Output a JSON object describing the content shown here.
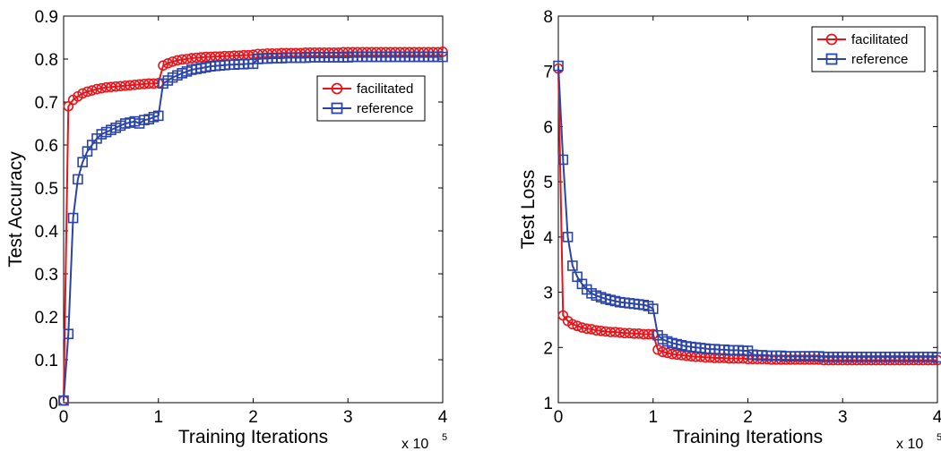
{
  "chart_data": [
    {
      "type": "line",
      "xlabel": "Training Iterations",
      "ylabel": "Test Accuracy",
      "x_multiplier": "x 10",
      "x_multiplier_exp": "5",
      "xlim": [
        0,
        4
      ],
      "ylim": [
        0,
        0.9
      ],
      "xticks": [
        "0",
        "1",
        "2",
        "3",
        "4"
      ],
      "yticks": [
        "0",
        "0.1",
        "0.2",
        "0.3",
        "0.4",
        "0.5",
        "0.6",
        "0.7",
        "0.8",
        "0.9"
      ],
      "grid": false,
      "legend_position": "upper-right",
      "series": [
        {
          "name": "facilitated",
          "color": "#e8141b",
          "marker": "circle",
          "x": [
            0,
            0.05,
            0.1,
            0.15,
            0.2,
            0.25,
            0.3,
            0.35,
            0.4,
            0.45,
            0.5,
            0.55,
            0.6,
            0.65,
            0.7,
            0.75,
            0.8,
            0.85,
            0.9,
            0.95,
            1.0,
            1.05,
            1.1,
            1.15,
            1.2,
            1.25,
            1.3,
            1.35,
            1.4,
            1.45,
            1.5,
            1.55,
            1.6,
            1.65,
            1.7,
            1.75,
            1.8,
            1.85,
            1.9,
            1.95,
            2.0,
            2.05,
            2.1,
            2.15,
            2.2,
            2.25,
            2.3,
            2.35,
            2.4,
            2.45,
            2.5,
            2.55,
            2.6,
            2.65,
            2.7,
            2.75,
            2.8,
            2.85,
            2.9,
            2.95,
            3.0,
            3.05,
            3.1,
            3.15,
            3.2,
            3.25,
            3.3,
            3.35,
            3.4,
            3.45,
            3.5,
            3.55,
            3.6,
            3.65,
            3.7,
            3.75,
            3.8,
            3.85,
            3.9,
            3.95,
            4.0
          ],
          "y": [
            0.005,
            0.69,
            0.705,
            0.713,
            0.72,
            0.724,
            0.727,
            0.73,
            0.732,
            0.734,
            0.735,
            0.736,
            0.737,
            0.738,
            0.739,
            0.74,
            0.741,
            0.742,
            0.743,
            0.743,
            0.744,
            0.785,
            0.79,
            0.794,
            0.797,
            0.799,
            0.8,
            0.802,
            0.803,
            0.804,
            0.805,
            0.805,
            0.806,
            0.806,
            0.807,
            0.807,
            0.808,
            0.808,
            0.809,
            0.809,
            0.81,
            0.812,
            0.812,
            0.813,
            0.813,
            0.813,
            0.814,
            0.814,
            0.814,
            0.814,
            0.814,
            0.815,
            0.815,
            0.815,
            0.815,
            0.815,
            0.815,
            0.815,
            0.815,
            0.816,
            0.816,
            0.816,
            0.816,
            0.816,
            0.816,
            0.816,
            0.816,
            0.816,
            0.816,
            0.816,
            0.816,
            0.816,
            0.816,
            0.816,
            0.816,
            0.816,
            0.816,
            0.816,
            0.816,
            0.816,
            0.817
          ]
        },
        {
          "name": "reference",
          "color": "#2b44a8",
          "marker": "square",
          "x": [
            0,
            0.05,
            0.1,
            0.15,
            0.2,
            0.25,
            0.3,
            0.35,
            0.4,
            0.45,
            0.5,
            0.55,
            0.6,
            0.65,
            0.7,
            0.75,
            0.8,
            0.85,
            0.9,
            0.95,
            1.0,
            1.05,
            1.1,
            1.15,
            1.2,
            1.25,
            1.3,
            1.35,
            1.4,
            1.45,
            1.5,
            1.55,
            1.6,
            1.65,
            1.7,
            1.75,
            1.8,
            1.85,
            1.9,
            1.95,
            2.0,
            2.05,
            2.1,
            2.15,
            2.2,
            2.25,
            2.3,
            2.35,
            2.4,
            2.45,
            2.5,
            2.55,
            2.6,
            2.65,
            2.7,
            2.75,
            2.8,
            2.85,
            2.9,
            2.95,
            3.0,
            3.05,
            3.1,
            3.15,
            3.2,
            3.25,
            3.3,
            3.35,
            3.4,
            3.45,
            3.5,
            3.55,
            3.6,
            3.65,
            3.7,
            3.75,
            3.8,
            3.85,
            3.9,
            3.95,
            4.0
          ],
          "y": [
            0.005,
            0.16,
            0.43,
            0.52,
            0.56,
            0.585,
            0.6,
            0.615,
            0.625,
            0.63,
            0.635,
            0.64,
            0.645,
            0.65,
            0.652,
            0.655,
            0.65,
            0.658,
            0.66,
            0.665,
            0.668,
            0.743,
            0.75,
            0.757,
            0.762,
            0.767,
            0.771,
            0.775,
            0.777,
            0.779,
            0.781,
            0.783,
            0.784,
            0.785,
            0.786,
            0.787,
            0.787,
            0.788,
            0.788,
            0.789,
            0.789,
            0.8,
            0.801,
            0.801,
            0.802,
            0.802,
            0.802,
            0.803,
            0.803,
            0.803,
            0.803,
            0.803,
            0.804,
            0.804,
            0.804,
            0.804,
            0.804,
            0.804,
            0.804,
            0.804,
            0.804,
            0.805,
            0.805,
            0.805,
            0.805,
            0.805,
            0.805,
            0.805,
            0.805,
            0.805,
            0.805,
            0.805,
            0.805,
            0.805,
            0.805,
            0.805,
            0.805,
            0.805,
            0.805,
            0.805,
            0.805
          ]
        }
      ]
    },
    {
      "type": "line",
      "xlabel": "Training Iterations",
      "ylabel": "Test Loss",
      "x_multiplier": "x 10",
      "x_multiplier_exp": "5",
      "xlim": [
        0,
        4
      ],
      "ylim": [
        1,
        8
      ],
      "xticks": [
        "0",
        "1",
        "2",
        "3",
        "4"
      ],
      "yticks": [
        "1",
        "2",
        "3",
        "4",
        "5",
        "6",
        "7",
        "8"
      ],
      "grid": false,
      "legend_position": "upper-right",
      "series": [
        {
          "name": "facilitated",
          "color": "#e8141b",
          "marker": "circle",
          "x": [
            0,
            0.05,
            0.1,
            0.15,
            0.2,
            0.25,
            0.3,
            0.35,
            0.4,
            0.45,
            0.5,
            0.55,
            0.6,
            0.65,
            0.7,
            0.75,
            0.8,
            0.85,
            0.9,
            0.95,
            1.0,
            1.05,
            1.1,
            1.15,
            1.2,
            1.25,
            1.3,
            1.35,
            1.4,
            1.45,
            1.5,
            1.55,
            1.6,
            1.65,
            1.7,
            1.75,
            1.8,
            1.85,
            1.9,
            1.95,
            2.0,
            2.05,
            2.1,
            2.15,
            2.2,
            2.25,
            2.3,
            2.35,
            2.4,
            2.45,
            2.5,
            2.55,
            2.6,
            2.65,
            2.7,
            2.75,
            2.8,
            2.85,
            2.9,
            2.95,
            3.0,
            3.05,
            3.1,
            3.15,
            3.2,
            3.25,
            3.3,
            3.35,
            3.4,
            3.45,
            3.5,
            3.55,
            3.6,
            3.65,
            3.7,
            3.75,
            3.8,
            3.85,
            3.9,
            3.95,
            4.0
          ],
          "y": [
            7.05,
            2.58,
            2.48,
            2.42,
            2.39,
            2.36,
            2.34,
            2.33,
            2.31,
            2.3,
            2.29,
            2.28,
            2.28,
            2.27,
            2.26,
            2.26,
            2.25,
            2.25,
            2.24,
            2.24,
            2.24,
            1.96,
            1.92,
            1.9,
            1.88,
            1.87,
            1.86,
            1.85,
            1.84,
            1.83,
            1.83,
            1.82,
            1.82,
            1.81,
            1.81,
            1.81,
            1.8,
            1.8,
            1.8,
            1.8,
            1.79,
            1.79,
            1.79,
            1.79,
            1.79,
            1.78,
            1.78,
            1.78,
            1.78,
            1.78,
            1.78,
            1.78,
            1.78,
            1.78,
            1.78,
            1.78,
            1.77,
            1.77,
            1.77,
            1.77,
            1.77,
            1.77,
            1.77,
            1.77,
            1.77,
            1.77,
            1.77,
            1.77,
            1.77,
            1.77,
            1.77,
            1.77,
            1.77,
            1.77,
            1.77,
            1.77,
            1.77,
            1.77,
            1.77,
            1.77,
            1.77
          ]
        },
        {
          "name": "reference",
          "color": "#2b44a8",
          "marker": "square",
          "x": [
            0,
            0.05,
            0.1,
            0.15,
            0.2,
            0.25,
            0.3,
            0.35,
            0.4,
            0.45,
            0.5,
            0.55,
            0.6,
            0.65,
            0.7,
            0.75,
            0.8,
            0.85,
            0.9,
            0.95,
            1.0,
            1.05,
            1.1,
            1.15,
            1.2,
            1.25,
            1.3,
            1.35,
            1.4,
            1.45,
            1.5,
            1.55,
            1.6,
            1.65,
            1.7,
            1.75,
            1.8,
            1.85,
            1.9,
            1.95,
            2.0,
            2.05,
            2.1,
            2.15,
            2.2,
            2.25,
            2.3,
            2.35,
            2.4,
            2.45,
            2.5,
            2.55,
            2.6,
            2.65,
            2.7,
            2.75,
            2.8,
            2.85,
            2.9,
            2.95,
            3.0,
            3.05,
            3.1,
            3.15,
            3.2,
            3.25,
            3.3,
            3.35,
            3.4,
            3.45,
            3.5,
            3.55,
            3.6,
            3.65,
            3.7,
            3.75,
            3.8,
            3.85,
            3.9,
            3.95,
            4.0
          ],
          "y": [
            7.1,
            5.4,
            4.0,
            3.48,
            3.28,
            3.15,
            3.05,
            2.98,
            2.94,
            2.91,
            2.88,
            2.86,
            2.84,
            2.82,
            2.81,
            2.8,
            2.79,
            2.78,
            2.77,
            2.75,
            2.7,
            2.22,
            2.15,
            2.11,
            2.08,
            2.06,
            2.04,
            2.02,
            2.01,
            2.0,
            1.99,
            1.98,
            1.97,
            1.97,
            1.96,
            1.96,
            1.95,
            1.95,
            1.95,
            1.94,
            1.94,
            1.87,
            1.86,
            1.86,
            1.85,
            1.85,
            1.85,
            1.85,
            1.84,
            1.84,
            1.84,
            1.84,
            1.84,
            1.84,
            1.84,
            1.84,
            1.83,
            1.83,
            1.83,
            1.83,
            1.83,
            1.83,
            1.83,
            1.83,
            1.83,
            1.83,
            1.83,
            1.83,
            1.83,
            1.83,
            1.83,
            1.83,
            1.83,
            1.83,
            1.83,
            1.83,
            1.83,
            1.83,
            1.83,
            1.83,
            1.82
          ]
        }
      ]
    }
  ]
}
